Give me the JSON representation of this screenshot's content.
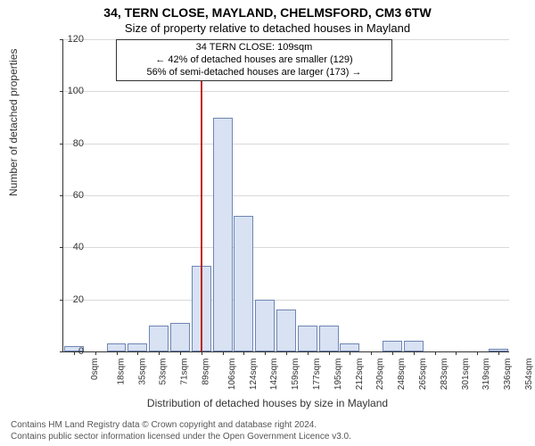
{
  "chart": {
    "type": "histogram",
    "title_line1": "34, TERN CLOSE, MAYLAND, CHELMSFORD, CM3 6TW",
    "title_line2": "Size of property relative to detached houses in Mayland",
    "annotation": {
      "line1": "34 TERN CLOSE: 109sqm",
      "line2": "← 42% of detached houses are smaller (129)",
      "line3": "56% of semi-detached houses are larger (173) →"
    },
    "ylabel": "Number of detached properties",
    "xlabel": "Distribution of detached houses by size in Mayland",
    "ylim": [
      0,
      120
    ],
    "ytick_step": 20,
    "yticks": [
      0,
      20,
      40,
      60,
      80,
      100,
      120
    ],
    "xticks": [
      "0sqm",
      "18sqm",
      "35sqm",
      "53sqm",
      "71sqm",
      "89sqm",
      "106sqm",
      "124sqm",
      "142sqm",
      "159sqm",
      "177sqm",
      "195sqm",
      "212sqm",
      "230sqm",
      "248sqm",
      "265sqm",
      "283sqm",
      "301sqm",
      "319sqm",
      "336sqm",
      "354sqm"
    ],
    "reference_value": 109,
    "x_max": 354,
    "values": [
      2,
      0,
      3,
      3,
      10,
      11,
      33,
      90,
      52,
      20,
      16,
      10,
      10,
      3,
      0,
      4,
      4,
      0,
      0,
      0,
      1
    ],
    "bar_fill": "#d8e2f3",
    "bar_border": "#6f86b3",
    "reference_line_color": "#c02020",
    "grid_color": "#d9d9d9",
    "axis_color": "#333333",
    "background_color": "#ffffff",
    "title_fontsize": 14,
    "subtitle_fontsize": 13,
    "label_fontsize": 12,
    "tick_fontsize": 11
  },
  "footer": {
    "line1": "Contains HM Land Registry data © Crown copyright and database right 2024.",
    "line2": "Contains public sector information licensed under the Open Government Licence v3.0."
  }
}
